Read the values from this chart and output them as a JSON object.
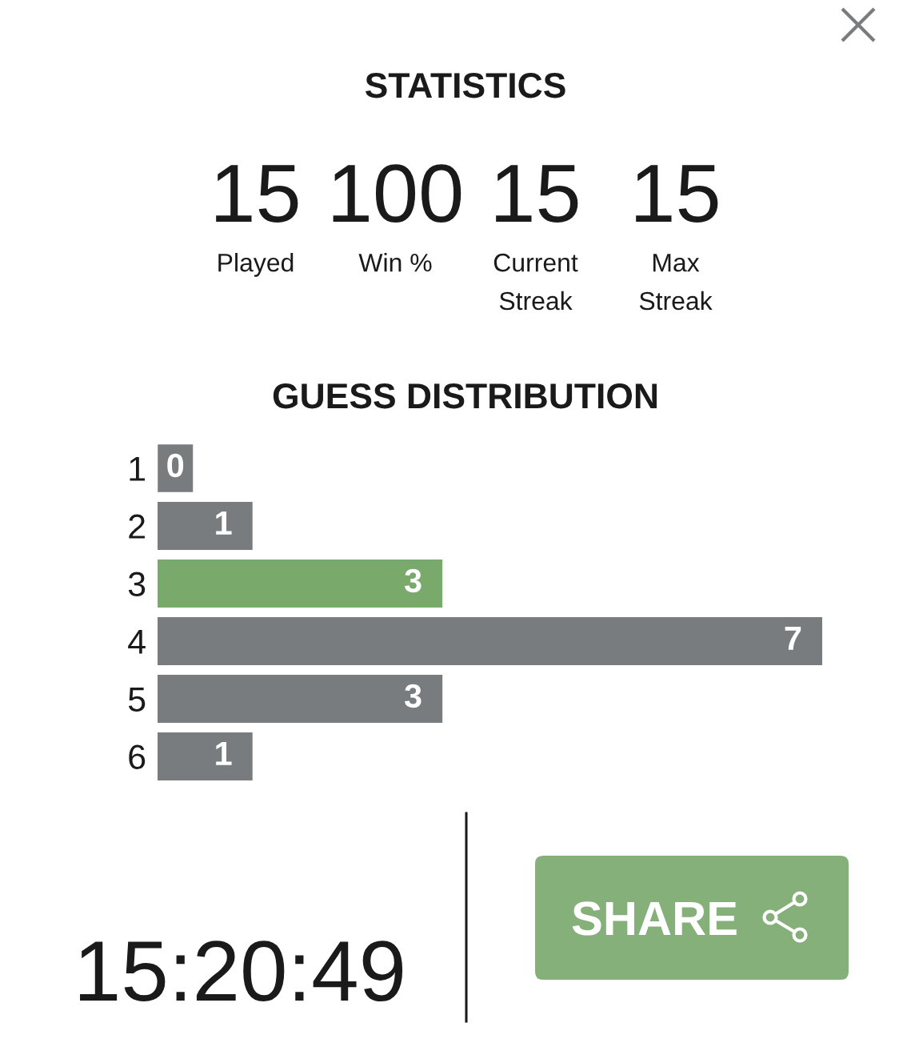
{
  "chart_data": [
    {
      "type": "other",
      "title": "STATISTICS",
      "annotations": [
        "15",
        "Played",
        "100",
        "Win %",
        "15",
        "Current\nStreak",
        "15",
        "Max\nStreak"
      ]
    },
    {
      "type": "bar",
      "title": "GUESS DISTRIBUTION",
      "orientation": "horizontal",
      "categories": [
        "1",
        "2",
        "3",
        "4",
        "5",
        "6"
      ],
      "values": [
        0,
        1,
        3,
        7,
        3,
        1
      ],
      "colors": [
        "#787c7e",
        "#787c7e",
        "#79a96b",
        "#787c7e",
        "#787c7e",
        "#787c7e"
      ],
      "xlim": [
        0,
        7
      ],
      "data_labels": true,
      "tick_labels": "y"
    },
    {
      "type": "other",
      "annotations": [
        "15:20:49",
        "SHARE"
      ]
    }
  ]
}
